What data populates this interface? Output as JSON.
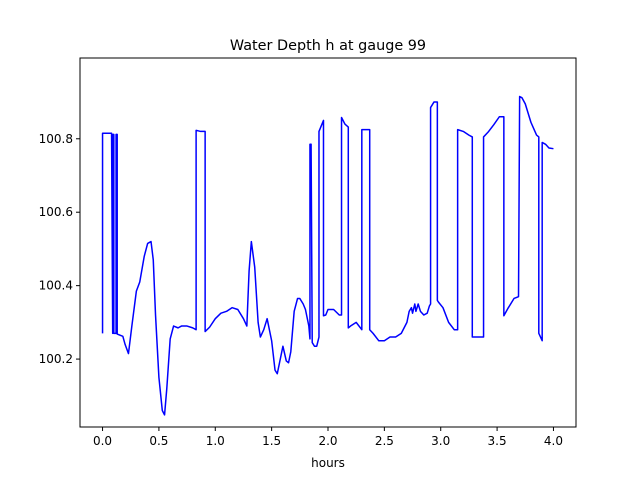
{
  "chart_data": {
    "type": "line",
    "title": "Water Depth h at gauge 99",
    "xlabel": "hours",
    "ylabel": "",
    "xlim": [
      -0.2,
      4.2
    ],
    "ylim": [
      100.015,
      101.02
    ],
    "grid": false,
    "x_ticks": [
      0.0,
      0.5,
      1.0,
      1.5,
      2.0,
      2.5,
      3.0,
      3.5,
      4.0
    ],
    "x_tick_labels": [
      "0.0",
      "0.5",
      "1.0",
      "1.5",
      "2.0",
      "2.5",
      "3.0",
      "3.5",
      "4.0"
    ],
    "y_ticks": [
      100.2,
      100.4,
      100.6,
      100.8
    ],
    "y_tick_labels": [
      "100.2",
      "100.4",
      "100.6",
      "100.8"
    ],
    "series": [
      {
        "color": "#0000ff",
        "x": [
          0.0,
          0.0,
          0.08,
          0.09,
          0.09,
          0.1,
          0.1,
          0.12,
          0.12,
          0.13,
          0.13,
          0.18,
          0.2,
          0.23,
          0.26,
          0.3,
          0.33,
          0.37,
          0.4,
          0.43,
          0.45,
          0.47,
          0.5,
          0.53,
          0.55,
          0.57,
          0.6,
          0.63,
          0.67,
          0.7,
          0.75,
          0.8,
          0.83,
          0.83,
          0.87,
          0.91,
          0.91,
          0.95,
          1.0,
          1.05,
          1.1,
          1.15,
          1.2,
          1.25,
          1.28,
          1.3,
          1.32,
          1.35,
          1.38,
          1.4,
          1.43,
          1.46,
          1.5,
          1.53,
          1.55,
          1.57,
          1.6,
          1.63,
          1.65,
          1.67,
          1.7,
          1.73,
          1.75,
          1.78,
          1.8,
          1.83,
          1.84,
          1.84,
          1.85,
          1.86,
          1.88,
          1.9,
          1.92,
          1.92,
          1.96,
          1.96,
          1.98,
          2.0,
          2.05,
          2.1,
          2.12,
          2.12,
          2.15,
          2.18,
          2.18,
          2.2,
          2.25,
          2.3,
          2.3,
          2.37,
          2.37,
          2.4,
          2.45,
          2.5,
          2.55,
          2.6,
          2.65,
          2.7,
          2.72,
          2.74,
          2.75,
          2.77,
          2.78,
          2.8,
          2.82,
          2.85,
          2.88,
          2.9,
          2.91,
          2.91,
          2.94,
          2.97,
          2.97,
          2.98,
          3.02,
          3.07,
          3.12,
          3.15,
          3.15,
          3.2,
          3.25,
          3.28,
          3.28,
          3.3,
          3.38,
          3.38,
          3.42,
          3.47,
          3.52,
          3.55,
          3.56,
          3.56,
          3.6,
          3.65,
          3.69,
          3.69,
          3.7,
          3.72,
          3.75,
          3.8,
          3.85,
          3.87,
          3.87,
          3.9,
          3.9,
          3.93,
          3.96,
          4.0
        ],
        "y": [
          100.27,
          100.815,
          100.815,
          100.27,
          100.812,
          100.812,
          100.27,
          100.27,
          100.812,
          100.812,
          100.268,
          100.262,
          100.24,
          100.215,
          100.29,
          100.385,
          100.41,
          100.48,
          100.515,
          100.52,
          100.47,
          100.32,
          100.15,
          100.06,
          100.048,
          100.12,
          100.255,
          100.29,
          100.285,
          100.29,
          100.29,
          100.285,
          100.28,
          100.823,
          100.82,
          100.82,
          100.275,
          100.287,
          100.31,
          100.325,
          100.33,
          100.34,
          100.335,
          100.31,
          100.29,
          100.44,
          100.52,
          100.45,
          100.3,
          100.26,
          100.28,
          100.31,
          100.25,
          100.17,
          100.16,
          100.19,
          100.235,
          100.195,
          100.19,
          100.22,
          100.33,
          100.365,
          100.365,
          100.35,
          100.335,
          100.29,
          100.255,
          100.785,
          100.785,
          100.245,
          100.235,
          100.235,
          100.26,
          100.82,
          100.85,
          100.318,
          100.32,
          100.335,
          100.335,
          100.32,
          100.32,
          100.858,
          100.84,
          100.832,
          100.285,
          100.29,
          100.3,
          100.28,
          100.825,
          100.825,
          100.28,
          100.27,
          100.25,
          100.25,
          100.26,
          100.26,
          100.27,
          100.3,
          100.33,
          100.34,
          100.325,
          100.35,
          100.33,
          100.35,
          100.33,
          100.32,
          100.325,
          100.345,
          100.35,
          100.885,
          100.9,
          100.9,
          100.36,
          100.355,
          100.34,
          100.3,
          100.28,
          100.28,
          100.825,
          100.82,
          100.81,
          100.805,
          100.26,
          100.26,
          100.26,
          100.805,
          100.818,
          100.838,
          100.86,
          100.86,
          100.86,
          100.318,
          100.34,
          100.365,
          100.37,
          100.37,
          100.915,
          100.912,
          100.895,
          100.845,
          100.81,
          100.805,
          100.27,
          100.25,
          100.79,
          100.785,
          100.775,
          100.773
        ]
      }
    ]
  }
}
